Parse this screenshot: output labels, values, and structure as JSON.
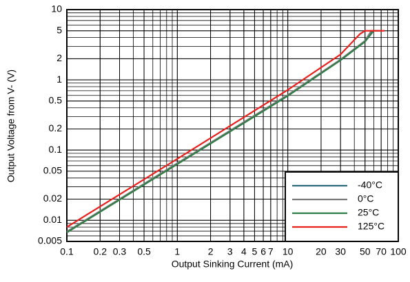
{
  "chart_data": {
    "type": "line",
    "x_label": "Output Sinking Current (mA)",
    "y_label": "Output Voltage from V- (V)",
    "xscale": "log",
    "yscale": "log",
    "xlim": [
      0.1,
      100
    ],
    "ylim": [
      0.005,
      10
    ],
    "xticks": [
      0.1,
      0.2,
      0.3,
      0.5,
      1,
      2,
      3,
      4,
      5,
      6,
      7,
      10,
      20,
      30,
      50,
      70,
      100
    ],
    "yticks": [
      0.005,
      0.01,
      0.02,
      0.05,
      0.1,
      0.2,
      0.5,
      1,
      2,
      5,
      10
    ],
    "grid": true,
    "minor_grid": true,
    "legend": "lower right",
    "series": [
      {
        "name": "-40°C",
        "color": "#2a6a78",
        "x": [
          0.1,
          1,
          10,
          30,
          50,
          58,
          65
        ],
        "values": [
          0.0068,
          0.064,
          0.6,
          1.9,
          3.5,
          5,
          5
        ]
      },
      {
        "name": "0°C",
        "color": "#7a7a7a",
        "x": [
          0.1,
          1,
          10,
          30,
          50,
          57,
          64
        ],
        "values": [
          0.0069,
          0.065,
          0.61,
          1.95,
          3.6,
          5,
          5
        ]
      },
      {
        "name": "25°C",
        "color": "#2f7d45",
        "x": [
          0.1,
          1,
          10,
          30,
          50,
          60,
          68
        ],
        "values": [
          0.0067,
          0.063,
          0.59,
          1.9,
          3.5,
          5,
          5
        ]
      },
      {
        "name": "125°C",
        "color": "#e8201c",
        "x": [
          0.1,
          1,
          10,
          30,
          45,
          50,
          75
        ],
        "values": [
          0.008,
          0.075,
          0.72,
          2.3,
          4.5,
          5,
          5
        ]
      }
    ]
  }
}
